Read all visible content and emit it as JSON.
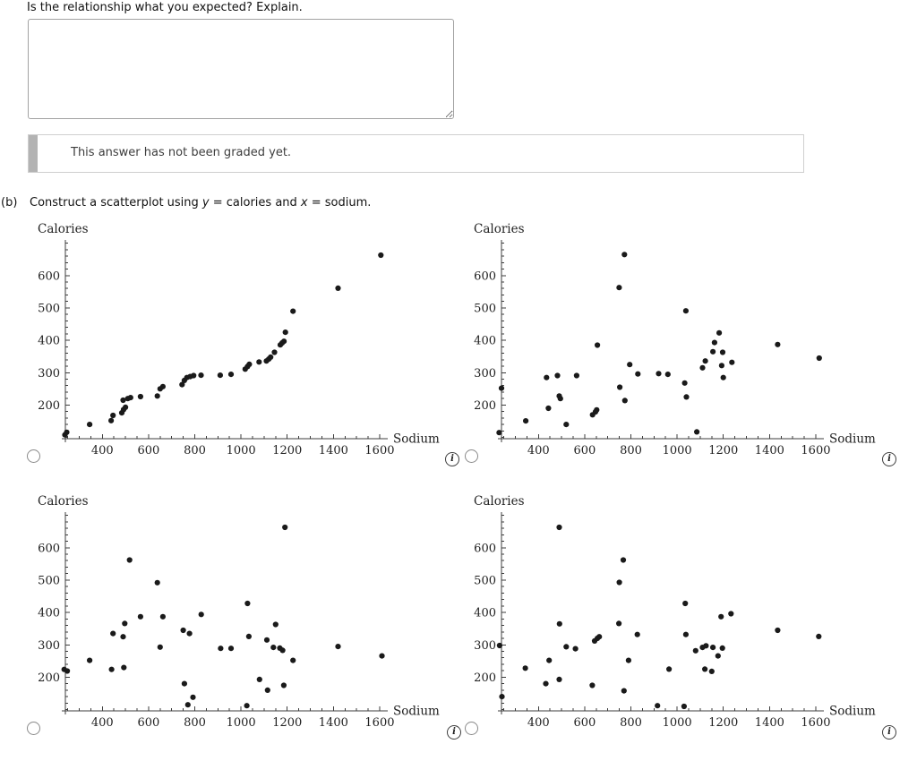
{
  "prompt": {
    "text": "Is the relationship what you expected? Explain."
  },
  "answer_box": {
    "value": "",
    "placeholder": ""
  },
  "grade_note": {
    "text": "This answer has not been graded yet."
  },
  "part_b": {
    "label": "(b)",
    "s1": "Construct a scatterplot using ",
    "s2": "y",
    "s3": " = calories and ",
    "s4": "x",
    "s5": " = sodium."
  },
  "icons": {
    "info_glyph": "i"
  },
  "chart_data": [
    {
      "type": "scatter",
      "name": "option-a-top-left",
      "xlabel": "Sodium",
      "ylabel": "Calories",
      "xlim": [
        240,
        1635
      ],
      "ylim": [
        85,
        710
      ],
      "xticks": [
        400,
        600,
        800,
        1000,
        1200,
        1400,
        1600
      ],
      "yticks": [
        200,
        300,
        400,
        500,
        600
      ],
      "minor_x_step": 50,
      "minor_y_step": 20,
      "grid": false,
      "legend": false,
      "point_color": "#1a1a1a",
      "points": [
        [
          238,
          108
        ],
        [
          246,
          116
        ],
        [
          345,
          140
        ],
        [
          438,
          152
        ],
        [
          446,
          168
        ],
        [
          484,
          176
        ],
        [
          492,
          186
        ],
        [
          500,
          193
        ],
        [
          490,
          215
        ],
        [
          510,
          220
        ],
        [
          522,
          223
        ],
        [
          565,
          226
        ],
        [
          638,
          228
        ],
        [
          650,
          250
        ],
        [
          662,
          257
        ],
        [
          745,
          263
        ],
        [
          755,
          276
        ],
        [
          766,
          285
        ],
        [
          780,
          288
        ],
        [
          795,
          291
        ],
        [
          827,
          292
        ],
        [
          910,
          292
        ],
        [
          957,
          295
        ],
        [
          1018,
          311
        ],
        [
          1028,
          319
        ],
        [
          1036,
          326
        ],
        [
          1078,
          333
        ],
        [
          1110,
          336
        ],
        [
          1120,
          342
        ],
        [
          1128,
          348
        ],
        [
          1145,
          363
        ],
        [
          1170,
          386
        ],
        [
          1178,
          392
        ],
        [
          1186,
          397
        ],
        [
          1192,
          425
        ],
        [
          1225,
          490
        ],
        [
          1420,
          561
        ],
        [
          1605,
          663
        ]
      ]
    },
    {
      "type": "scatter",
      "name": "option-b-top-right",
      "xlabel": "Sodium",
      "ylabel": "Calories",
      "xlim": [
        240,
        1635
      ],
      "ylim": [
        85,
        710
      ],
      "xticks": [
        400,
        600,
        800,
        1000,
        1200,
        1400,
        1600
      ],
      "yticks": [
        200,
        300,
        400,
        500,
        600
      ],
      "minor_x_step": 50,
      "minor_y_step": 20,
      "grid": false,
      "legend": false,
      "point_color": "#1a1a1a",
      "points": [
        [
          230,
          115
        ],
        [
          240,
          252
        ],
        [
          345,
          151
        ],
        [
          435,
          285
        ],
        [
          443,
          190
        ],
        [
          482,
          291
        ],
        [
          490,
          228
        ],
        [
          495,
          220
        ],
        [
          520,
          140
        ],
        [
          565,
          291
        ],
        [
          634,
          170
        ],
        [
          647,
          179
        ],
        [
          652,
          185
        ],
        [
          655,
          385
        ],
        [
          749,
          563
        ],
        [
          772,
          665
        ],
        [
          752,
          255
        ],
        [
          774,
          214
        ],
        [
          795,
          325
        ],
        [
          830,
          296
        ],
        [
          920,
          297
        ],
        [
          960,
          295
        ],
        [
          1038,
          491
        ],
        [
          1033,
          268
        ],
        [
          1040,
          225
        ],
        [
          1085,
          117
        ],
        [
          1110,
          315
        ],
        [
          1122,
          336
        ],
        [
          1155,
          365
        ],
        [
          1162,
          393
        ],
        [
          1182,
          423
        ],
        [
          1197,
          363
        ],
        [
          1193,
          322
        ],
        [
          1200,
          285
        ],
        [
          1237,
          332
        ],
        [
          1435,
          387
        ],
        [
          1615,
          345
        ]
      ]
    },
    {
      "type": "scatter",
      "name": "option-c-bottom-left",
      "xlabel": "Sodium",
      "ylabel": "Calories",
      "xlim": [
        240,
        1635
      ],
      "ylim": [
        85,
        710
      ],
      "xticks": [
        400,
        600,
        800,
        1000,
        1200,
        1400,
        1600
      ],
      "yticks": [
        200,
        300,
        400,
        500,
        600
      ],
      "minor_x_step": 50,
      "minor_y_step": 20,
      "grid": false,
      "legend": false,
      "point_color": "#1a1a1a",
      "points": [
        [
          235,
          224
        ],
        [
          248,
          219
        ],
        [
          345,
          252
        ],
        [
          440,
          224
        ],
        [
          446,
          335
        ],
        [
          490,
          325
        ],
        [
          493,
          230
        ],
        [
          497,
          366
        ],
        [
          518,
          562
        ],
        [
          565,
          387
        ],
        [
          638,
          492
        ],
        [
          650,
          293
        ],
        [
          662,
          387
        ],
        [
          750,
          345
        ],
        [
          755,
          180
        ],
        [
          770,
          115
        ],
        [
          777,
          335
        ],
        [
          792,
          138
        ],
        [
          828,
          394
        ],
        [
          912,
          289
        ],
        [
          957,
          289
        ],
        [
          1025,
          112
        ],
        [
          1028,
          428
        ],
        [
          1034,
          326
        ],
        [
          1080,
          193
        ],
        [
          1112,
          315
        ],
        [
          1115,
          160
        ],
        [
          1140,
          292
        ],
        [
          1150,
          363
        ],
        [
          1168,
          290
        ],
        [
          1180,
          283
        ],
        [
          1190,
          663
        ],
        [
          1185,
          175
        ],
        [
          1225,
          252
        ],
        [
          1420,
          295
        ],
        [
          1610,
          266
        ]
      ]
    },
    {
      "type": "scatter",
      "name": "option-d-bottom-right",
      "xlabel": "Sodium",
      "ylabel": "Calories",
      "xlim": [
        240,
        1635
      ],
      "ylim": [
        85,
        710
      ],
      "xticks": [
        400,
        600,
        800,
        1000,
        1200,
        1400,
        1600
      ],
      "yticks": [
        200,
        300,
        400,
        500,
        600
      ],
      "minor_x_step": 50,
      "minor_y_step": 20,
      "grid": false,
      "legend": false,
      "point_color": "#1a1a1a",
      "points": [
        [
          232,
          298
        ],
        [
          242,
          140
        ],
        [
          343,
          228
        ],
        [
          432,
          180
        ],
        [
          446,
          252
        ],
        [
          490,
          663
        ],
        [
          491,
          365
        ],
        [
          490,
          193
        ],
        [
          520,
          294
        ],
        [
          560,
          288
        ],
        [
          633,
          175
        ],
        [
          643,
          312
        ],
        [
          655,
          320
        ],
        [
          663,
          325
        ],
        [
          748,
          366
        ],
        [
          750,
          493
        ],
        [
          767,
          562
        ],
        [
          770,
          158
        ],
        [
          790,
          252
        ],
        [
          828,
          332
        ],
        [
          915,
          112
        ],
        [
          965,
          225
        ],
        [
          1030,
          110
        ],
        [
          1035,
          428
        ],
        [
          1038,
          332
        ],
        [
          1080,
          282
        ],
        [
          1110,
          292
        ],
        [
          1125,
          297
        ],
        [
          1120,
          225
        ],
        [
          1150,
          218
        ],
        [
          1155,
          292
        ],
        [
          1177,
          266
        ],
        [
          1190,
          387
        ],
        [
          1196,
          290
        ],
        [
          1233,
          396
        ],
        [
          1435,
          345
        ],
        [
          1613,
          326
        ]
      ]
    }
  ]
}
